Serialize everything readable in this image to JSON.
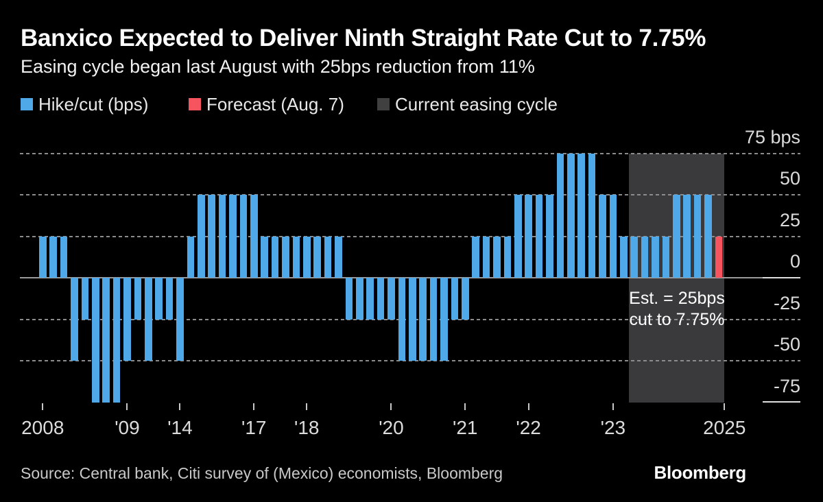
{
  "header": {
    "title": "Banxico Expected to Deliver Ninth Straight Rate Cut to 7.75%",
    "subtitle": "Easing cycle began last August with 25bps reduction from 11%"
  },
  "legend": [
    {
      "label": "Hike/cut (bps)",
      "color": "#4fa8e8"
    },
    {
      "label": "Forecast (Aug. 7)",
      "color": "#f6545f"
    },
    {
      "label": "Current easing cycle",
      "color": "#404040"
    }
  ],
  "chart_data": {
    "type": "bar",
    "title": "Banxico Expected to Deliver Ninth Straight Rate Cut to 7.75%",
    "subtitle": "Easing cycle began last August with 25bps reduction from 11%",
    "unit": "bps",
    "ylim": [
      -75,
      75
    ],
    "grid": "dashed-horizontal",
    "legend_position": "top-left",
    "yticks": [
      {
        "value": 75,
        "label": "75 bps"
      },
      {
        "value": 50,
        "label": "50"
      },
      {
        "value": 25,
        "label": "25"
      },
      {
        "value": 0,
        "label": "0"
      },
      {
        "value": -25,
        "label": "-25"
      },
      {
        "value": -50,
        "label": "-50"
      },
      {
        "value": -75,
        "label": "-75"
      }
    ],
    "values": [
      25,
      25,
      25,
      -50,
      -25,
      -75,
      -75,
      -75,
      -50,
      -25,
      -50,
      -25,
      -25,
      -50,
      25,
      50,
      50,
      50,
      50,
      50,
      50,
      25,
      25,
      25,
      25,
      25,
      25,
      25,
      25,
      -25,
      -25,
      -25,
      -25,
      -25,
      -50,
      -50,
      -50,
      -50,
      -50,
      -25,
      -25,
      25,
      25,
      25,
      25,
      50,
      50,
      50,
      50,
      75,
      75,
      75,
      75,
      50,
      50,
      25,
      25,
      25,
      25,
      25,
      50,
      50,
      50,
      50,
      25
    ],
    "forecast_index": 64,
    "easing_cycle_span": {
      "start_index": 56,
      "end_index": 64
    },
    "xticks": [
      {
        "label": "2008",
        "index": 0
      },
      {
        "label": "'09",
        "index": 8
      },
      {
        "label": "'14",
        "index": 13
      },
      {
        "label": "'17",
        "index": 20
      },
      {
        "label": "'18",
        "index": 25
      },
      {
        "label": "'20",
        "index": 33
      },
      {
        "label": "'21",
        "index": 40
      },
      {
        "label": "'22",
        "index": 46
      },
      {
        "label": "'23",
        "index": 54
      },
      {
        "label": "2025",
        "index": 64.55
      }
    ],
    "annotation": [
      "Est. = 25bps",
      "cut to 7.75%"
    ],
    "colors": {
      "bar": "#4fa8e8",
      "forecast_bar": "#f6545f",
      "easing_region": "#3a3a3c",
      "grid_dash": "#8c8c8c",
      "zero_line": "#9a9a9a",
      "axis_segment": "#e0e0e0",
      "background": "#000000"
    }
  },
  "footer": {
    "source": "Source: Central bank, Citi survey of (Mexico) economists, Bloomberg",
    "logo": "Bloomberg"
  }
}
